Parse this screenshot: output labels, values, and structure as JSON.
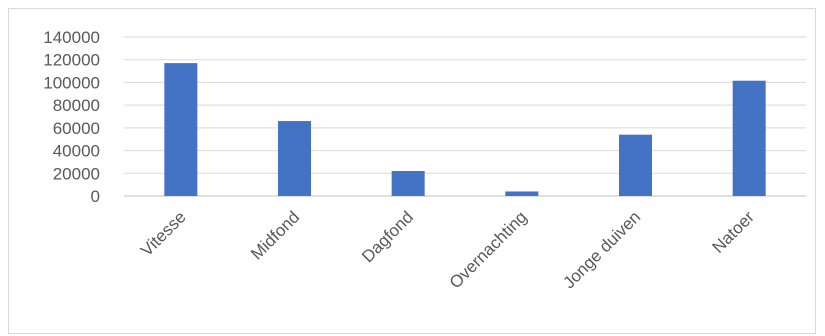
{
  "chart_data": {
    "type": "bar",
    "title": "",
    "xlabel": "",
    "ylabel": "",
    "categories": [
      "Vitesse",
      "Midfond",
      "Dagfond",
      "Overnachting",
      "Jonge duiven",
      "Natoer"
    ],
    "values": [
      117000,
      66000,
      22000,
      4000,
      54000,
      101500
    ],
    "ylim": [
      0,
      140000
    ],
    "yticks": [
      0,
      20000,
      40000,
      60000,
      80000,
      100000,
      120000,
      140000
    ],
    "ytick_labels": [
      "0",
      "20000",
      "40000",
      "60000",
      "80000",
      "100000",
      "120000",
      "140000"
    ],
    "bar_color": "#4472c4",
    "grid": true,
    "grid_color": "#d9d9d9",
    "legend": "none"
  }
}
